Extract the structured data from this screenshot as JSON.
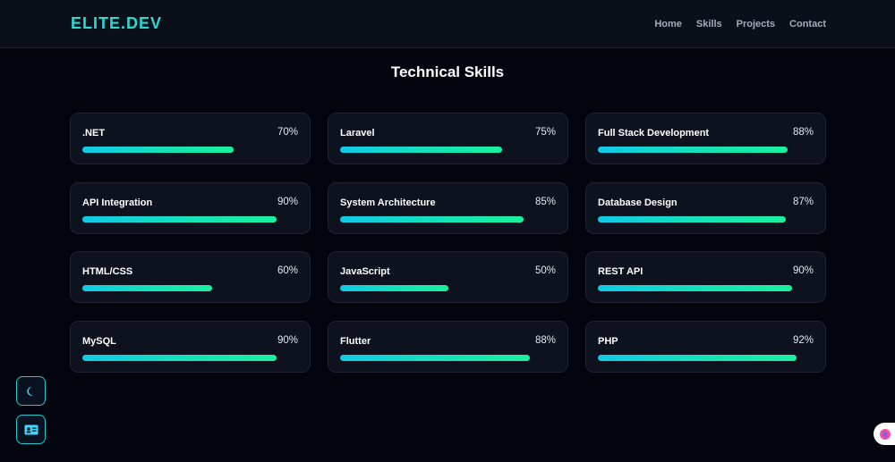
{
  "header": {
    "logo": "ELITE.DEV",
    "nav": [
      {
        "label": "Home"
      },
      {
        "label": "Skills"
      },
      {
        "label": "Projects"
      },
      {
        "label": "Contact"
      }
    ]
  },
  "section": {
    "title": "Technical Skills"
  },
  "skills": [
    {
      "name": ".NET",
      "percent_label": "70%",
      "level": 70
    },
    {
      "name": "Laravel",
      "percent_label": "75%",
      "level": 75
    },
    {
      "name": "Full Stack Development",
      "percent_label": "88%",
      "level": 88
    },
    {
      "name": "API Integration",
      "percent_label": "90%",
      "level": 90
    },
    {
      "name": "System Architecture",
      "percent_label": "85%",
      "level": 85
    },
    {
      "name": "Database Design",
      "percent_label": "87%",
      "level": 87
    },
    {
      "name": "HTML/CSS",
      "percent_label": "60%",
      "level": 60
    },
    {
      "name": "JavaScript",
      "percent_label": "50%",
      "level": 50
    },
    {
      "name": "REST API",
      "percent_label": "90%",
      "level": 90
    },
    {
      "name": "MySQL",
      "percent_label": "90%",
      "level": 90
    },
    {
      "name": "Flutter",
      "percent_label": "88%",
      "level": 88
    },
    {
      "name": "PHP",
      "percent_label": "92%",
      "level": 92
    }
  ],
  "floating": {
    "theme_icon": "moon-icon",
    "id_icon": "id-card-icon",
    "chat_icon": "brain-icon"
  },
  "colors": {
    "accent": "#2ad9d0",
    "bar_start": "#12c9e8",
    "bar_end": "#1af0a0",
    "background": "#02050e",
    "card": "#0d121e"
  }
}
